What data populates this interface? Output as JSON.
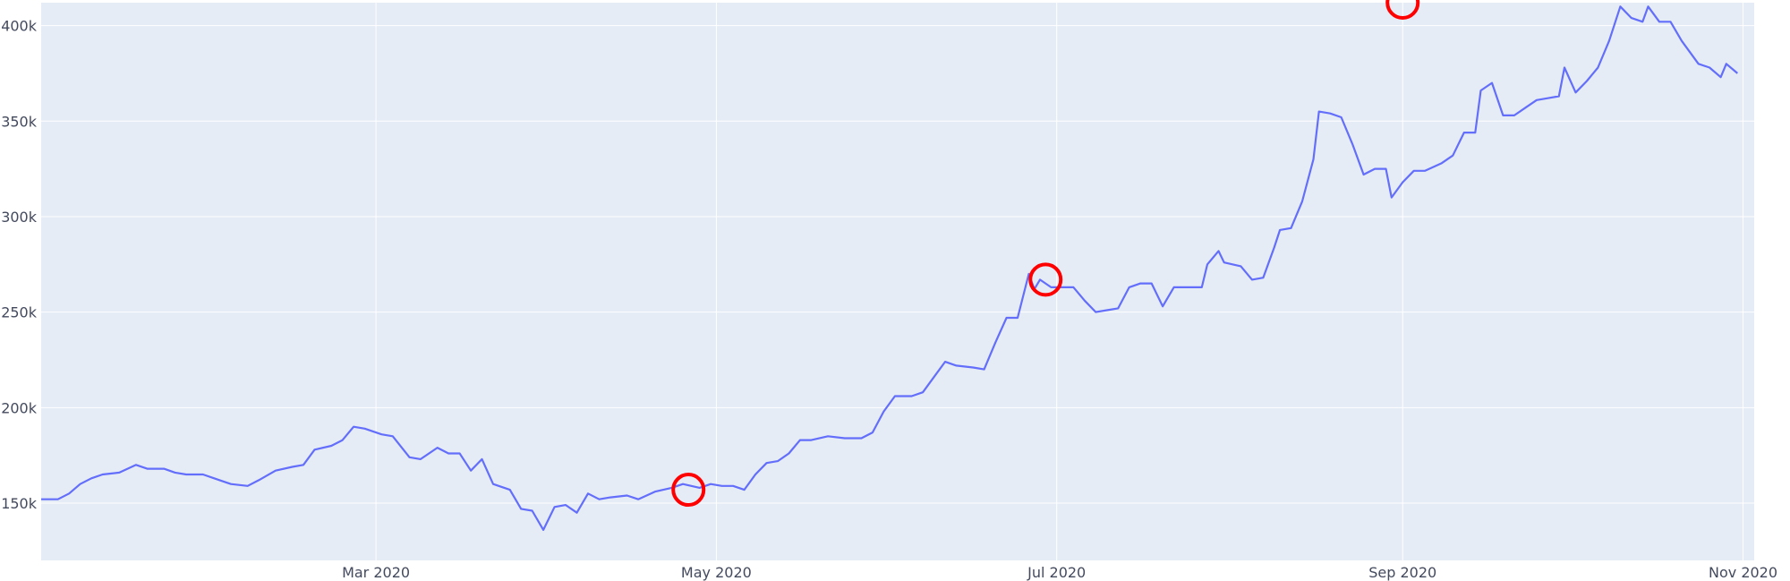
{
  "chart_data": {
    "type": "line",
    "title": "",
    "xlabel": "",
    "ylabel": "",
    "grid": true,
    "colors": {
      "plot_background": "#e5ecf6",
      "grid": "#ffffff",
      "line": "#636efa",
      "marker": "#ff0000"
    },
    "xlim": [
      "2020-01-01",
      "2020-11-03"
    ],
    "ylim": [
      120000,
      412000
    ],
    "x_ticks": [
      {
        "date": "2020-03-01",
        "label": "Mar 2020"
      },
      {
        "date": "2020-05-01",
        "label": "May 2020"
      },
      {
        "date": "2020-07-01",
        "label": "Jul 2020"
      },
      {
        "date": "2020-09-01",
        "label": "Sep 2020"
      },
      {
        "date": "2020-11-01",
        "label": "Nov 2020"
      }
    ],
    "y_ticks": [
      {
        "value": 150000,
        "label": "150k"
      },
      {
        "value": 200000,
        "label": "200k"
      },
      {
        "value": 250000,
        "label": "250k"
      },
      {
        "value": 300000,
        "label": "300k"
      },
      {
        "value": 350000,
        "label": "350k"
      },
      {
        "value": 400000,
        "label": "400k"
      }
    ],
    "series": [
      {
        "points": [
          [
            "2020-01-01",
            152000
          ],
          [
            "2020-01-04",
            152000
          ],
          [
            "2020-01-06",
            155000
          ],
          [
            "2020-01-08",
            160000
          ],
          [
            "2020-01-10",
            163000
          ],
          [
            "2020-01-12",
            165000
          ],
          [
            "2020-01-15",
            166000
          ],
          [
            "2020-01-18",
            170000
          ],
          [
            "2020-01-20",
            168000
          ],
          [
            "2020-01-23",
            168000
          ],
          [
            "2020-01-25",
            166000
          ],
          [
            "2020-01-27",
            165000
          ],
          [
            "2020-01-30",
            165000
          ],
          [
            "2020-02-01",
            163000
          ],
          [
            "2020-02-04",
            160000
          ],
          [
            "2020-02-07",
            159000
          ],
          [
            "2020-02-09",
            162000
          ],
          [
            "2020-02-12",
            167000
          ],
          [
            "2020-02-15",
            169000
          ],
          [
            "2020-02-17",
            170000
          ],
          [
            "2020-02-19",
            178000
          ],
          [
            "2020-02-22",
            180000
          ],
          [
            "2020-02-24",
            183000
          ],
          [
            "2020-02-26",
            190000
          ],
          [
            "2020-02-28",
            189000
          ],
          [
            "2020-03-02",
            186000
          ],
          [
            "2020-03-04",
            185000
          ],
          [
            "2020-03-07",
            174000
          ],
          [
            "2020-03-09",
            173000
          ],
          [
            "2020-03-12",
            179000
          ],
          [
            "2020-03-14",
            176000
          ],
          [
            "2020-03-16",
            176000
          ],
          [
            "2020-03-18",
            167000
          ],
          [
            "2020-03-20",
            173000
          ],
          [
            "2020-03-22",
            160000
          ],
          [
            "2020-03-25",
            157000
          ],
          [
            "2020-03-27",
            147000
          ],
          [
            "2020-03-29",
            146000
          ],
          [
            "2020-03-31",
            136000
          ],
          [
            "2020-04-02",
            148000
          ],
          [
            "2020-04-04",
            149000
          ],
          [
            "2020-04-06",
            145000
          ],
          [
            "2020-04-08",
            155000
          ],
          [
            "2020-04-10",
            152000
          ],
          [
            "2020-04-12",
            153000
          ],
          [
            "2020-04-15",
            154000
          ],
          [
            "2020-04-17",
            152000
          ],
          [
            "2020-04-20",
            156000
          ],
          [
            "2020-04-23",
            158000
          ],
          [
            "2020-04-25",
            160000
          ],
          [
            "2020-04-28",
            158000
          ],
          [
            "2020-04-30",
            160000
          ],
          [
            "2020-05-02",
            159000
          ],
          [
            "2020-05-04",
            159000
          ],
          [
            "2020-05-06",
            157000
          ],
          [
            "2020-05-08",
            165000
          ],
          [
            "2020-05-10",
            171000
          ],
          [
            "2020-05-12",
            172000
          ],
          [
            "2020-05-14",
            176000
          ],
          [
            "2020-05-16",
            183000
          ],
          [
            "2020-05-18",
            183000
          ],
          [
            "2020-05-21",
            185000
          ],
          [
            "2020-05-24",
            184000
          ],
          [
            "2020-05-27",
            184000
          ],
          [
            "2020-05-29",
            187000
          ],
          [
            "2020-05-31",
            198000
          ],
          [
            "2020-06-02",
            206000
          ],
          [
            "2020-06-05",
            206000
          ],
          [
            "2020-06-07",
            208000
          ],
          [
            "2020-06-09",
            216000
          ],
          [
            "2020-06-11",
            224000
          ],
          [
            "2020-06-13",
            222000
          ],
          [
            "2020-06-16",
            221000
          ],
          [
            "2020-06-18",
            220000
          ],
          [
            "2020-06-20",
            234000
          ],
          [
            "2020-06-22",
            247000
          ],
          [
            "2020-06-24",
            247000
          ],
          [
            "2020-06-26",
            270000
          ],
          [
            "2020-06-27",
            262000
          ],
          [
            "2020-06-28",
            267000
          ],
          [
            "2020-06-30",
            263000
          ],
          [
            "2020-07-02",
            263000
          ],
          [
            "2020-07-04",
            263000
          ],
          [
            "2020-07-06",
            256000
          ],
          [
            "2020-07-08",
            250000
          ],
          [
            "2020-07-10",
            251000
          ],
          [
            "2020-07-12",
            252000
          ],
          [
            "2020-07-14",
            263000
          ],
          [
            "2020-07-16",
            265000
          ],
          [
            "2020-07-18",
            265000
          ],
          [
            "2020-07-20",
            253000
          ],
          [
            "2020-07-22",
            263000
          ],
          [
            "2020-07-25",
            263000
          ],
          [
            "2020-07-27",
            263000
          ],
          [
            "2020-07-28",
            275000
          ],
          [
            "2020-07-30",
            282000
          ],
          [
            "2020-07-31",
            276000
          ],
          [
            "2020-08-03",
            274000
          ],
          [
            "2020-08-05",
            267000
          ],
          [
            "2020-08-07",
            268000
          ],
          [
            "2020-08-09",
            284000
          ],
          [
            "2020-08-10",
            293000
          ],
          [
            "2020-08-12",
            294000
          ],
          [
            "2020-08-14",
            308000
          ],
          [
            "2020-08-16",
            330000
          ],
          [
            "2020-08-17",
            355000
          ],
          [
            "2020-08-19",
            354000
          ],
          [
            "2020-08-21",
            352000
          ],
          [
            "2020-08-23",
            338000
          ],
          [
            "2020-08-25",
            322000
          ],
          [
            "2020-08-27",
            325000
          ],
          [
            "2020-08-29",
            325000
          ],
          [
            "2020-08-30",
            310000
          ],
          [
            "2020-09-01",
            318000
          ],
          [
            "2020-09-03",
            324000
          ],
          [
            "2020-09-05",
            324000
          ],
          [
            "2020-09-08",
            328000
          ],
          [
            "2020-09-10",
            332000
          ],
          [
            "2020-09-12",
            344000
          ],
          [
            "2020-09-14",
            344000
          ],
          [
            "2020-09-15",
            366000
          ],
          [
            "2020-09-17",
            370000
          ],
          [
            "2020-09-19",
            353000
          ],
          [
            "2020-09-21",
            353000
          ],
          [
            "2020-09-23",
            357000
          ],
          [
            "2020-09-25",
            361000
          ],
          [
            "2020-09-27",
            362000
          ],
          [
            "2020-09-29",
            363000
          ],
          [
            "2020-09-30",
            378000
          ],
          [
            "2020-10-02",
            365000
          ],
          [
            "2020-10-04",
            371000
          ],
          [
            "2020-10-06",
            378000
          ],
          [
            "2020-10-08",
            392000
          ],
          [
            "2020-10-10",
            410000
          ],
          [
            "2020-10-12",
            404000
          ],
          [
            "2020-10-14",
            402000
          ],
          [
            "2020-10-15",
            410000
          ],
          [
            "2020-10-17",
            402000
          ],
          [
            "2020-10-19",
            402000
          ],
          [
            "2020-10-21",
            392000
          ],
          [
            "2020-10-23",
            384000
          ],
          [
            "2020-10-24",
            380000
          ],
          [
            "2020-10-26",
            378000
          ],
          [
            "2020-10-28",
            373000
          ],
          [
            "2020-10-29",
            380000
          ],
          [
            "2020-10-31",
            375000
          ]
        ]
      }
    ],
    "annotations": [
      {
        "shape": "circle",
        "x": "2020-04-26",
        "y": 157000
      },
      {
        "shape": "circle",
        "x": "2020-06-29",
        "y": 267000
      },
      {
        "shape": "circle",
        "x": "2020-09-01",
        "y": 412000
      }
    ]
  }
}
